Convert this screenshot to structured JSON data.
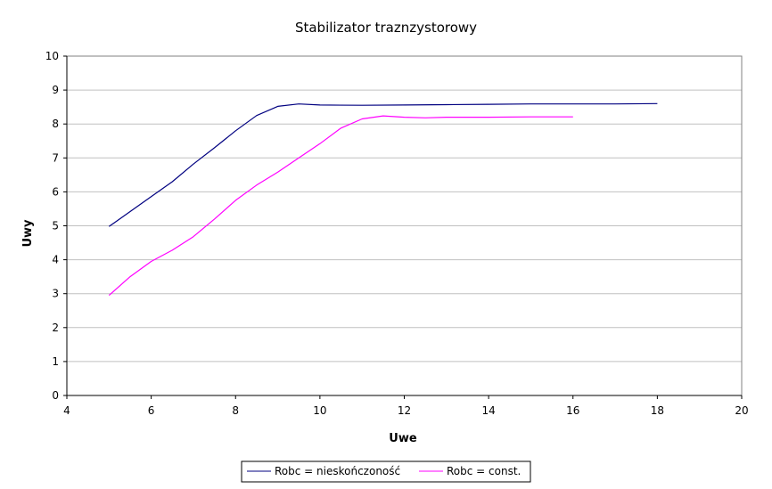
{
  "chart_data": {
    "type": "line",
    "title": "Stabilizator traznzystorowy",
    "xlabel": "Uwe",
    "ylabel": "Uwy",
    "xlim": [
      4,
      20
    ],
    "ylim": [
      0,
      10
    ],
    "xticks": [
      4,
      6,
      8,
      10,
      12,
      14,
      16,
      18,
      20
    ],
    "yticks": [
      0,
      1,
      2,
      3,
      4,
      5,
      6,
      7,
      8,
      9,
      10
    ],
    "grid": true,
    "legend_position": "bottom",
    "series": [
      {
        "name": "Robc = nieskończoność",
        "color": "#000080",
        "points": [
          [
            5.0,
            4.98
          ],
          [
            5.5,
            5.42
          ],
          [
            6.0,
            5.86
          ],
          [
            6.5,
            6.3
          ],
          [
            7.0,
            6.82
          ],
          [
            7.5,
            7.3
          ],
          [
            8.0,
            7.8
          ],
          [
            8.5,
            8.25
          ],
          [
            9.0,
            8.52
          ],
          [
            9.5,
            8.59
          ],
          [
            10.0,
            8.56
          ],
          [
            11.0,
            8.55
          ],
          [
            12.0,
            8.56
          ],
          [
            13.0,
            8.57
          ],
          [
            14.0,
            8.58
          ],
          [
            15.0,
            8.59
          ],
          [
            16.0,
            8.59
          ],
          [
            17.0,
            8.59
          ],
          [
            18.0,
            8.6
          ]
        ]
      },
      {
        "name": "Robc = const.",
        "color": "#ff00ff",
        "points": [
          [
            5.0,
            2.95
          ],
          [
            5.5,
            3.5
          ],
          [
            6.0,
            3.95
          ],
          [
            6.5,
            4.28
          ],
          [
            7.0,
            4.68
          ],
          [
            7.5,
            5.2
          ],
          [
            8.0,
            5.75
          ],
          [
            8.5,
            6.2
          ],
          [
            9.0,
            6.58
          ],
          [
            9.5,
            7.0
          ],
          [
            10.0,
            7.42
          ],
          [
            10.5,
            7.88
          ],
          [
            11.0,
            8.15
          ],
          [
            11.5,
            8.24
          ],
          [
            12.0,
            8.2
          ],
          [
            12.5,
            8.18
          ],
          [
            13.0,
            8.2
          ],
          [
            14.0,
            8.2
          ],
          [
            15.0,
            8.21
          ],
          [
            16.0,
            8.21
          ]
        ]
      }
    ]
  }
}
